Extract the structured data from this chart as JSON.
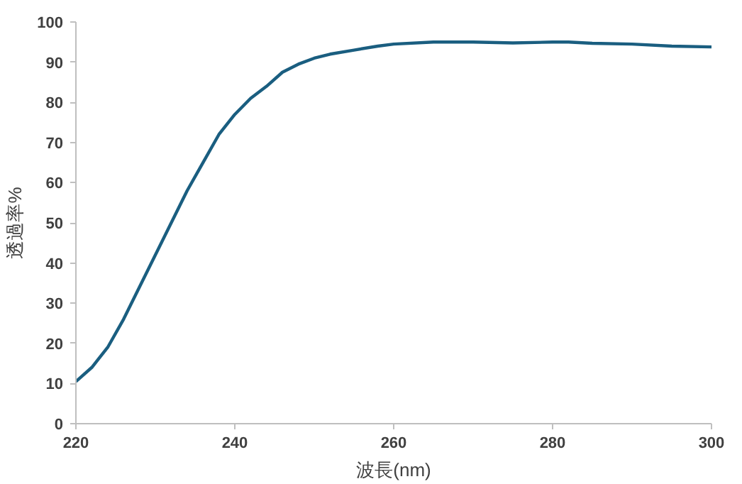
{
  "chart_data": {
    "type": "line",
    "xlabel": "波長(nm)",
    "ylabel": "透過率%",
    "xlim": [
      220,
      300
    ],
    "xticks": [
      220,
      240,
      260,
      280,
      300
    ],
    "ylim": [
      0,
      100
    ],
    "yticks": [
      0,
      10,
      20,
      30,
      40,
      50,
      60,
      70,
      80,
      90,
      100
    ],
    "grid": false,
    "series": [
      {
        "color": "#1a5e80",
        "x": [
          220,
          222,
          224,
          226,
          228,
          230,
          232,
          234,
          236,
          238,
          240,
          242,
          244,
          246,
          248,
          250,
          252,
          255,
          258,
          260,
          265,
          270,
          275,
          280,
          282,
          285,
          290,
          295,
          300
        ],
        "values": [
          10.5,
          14,
          19,
          26,
          34,
          42,
          50,
          58,
          65,
          72,
          77,
          81,
          84,
          87.5,
          89.5,
          91,
          92,
          93,
          94,
          94.5,
          95,
          95,
          94.8,
          95,
          95,
          94.7,
          94.5,
          94,
          93.8
        ]
      }
    ]
  }
}
